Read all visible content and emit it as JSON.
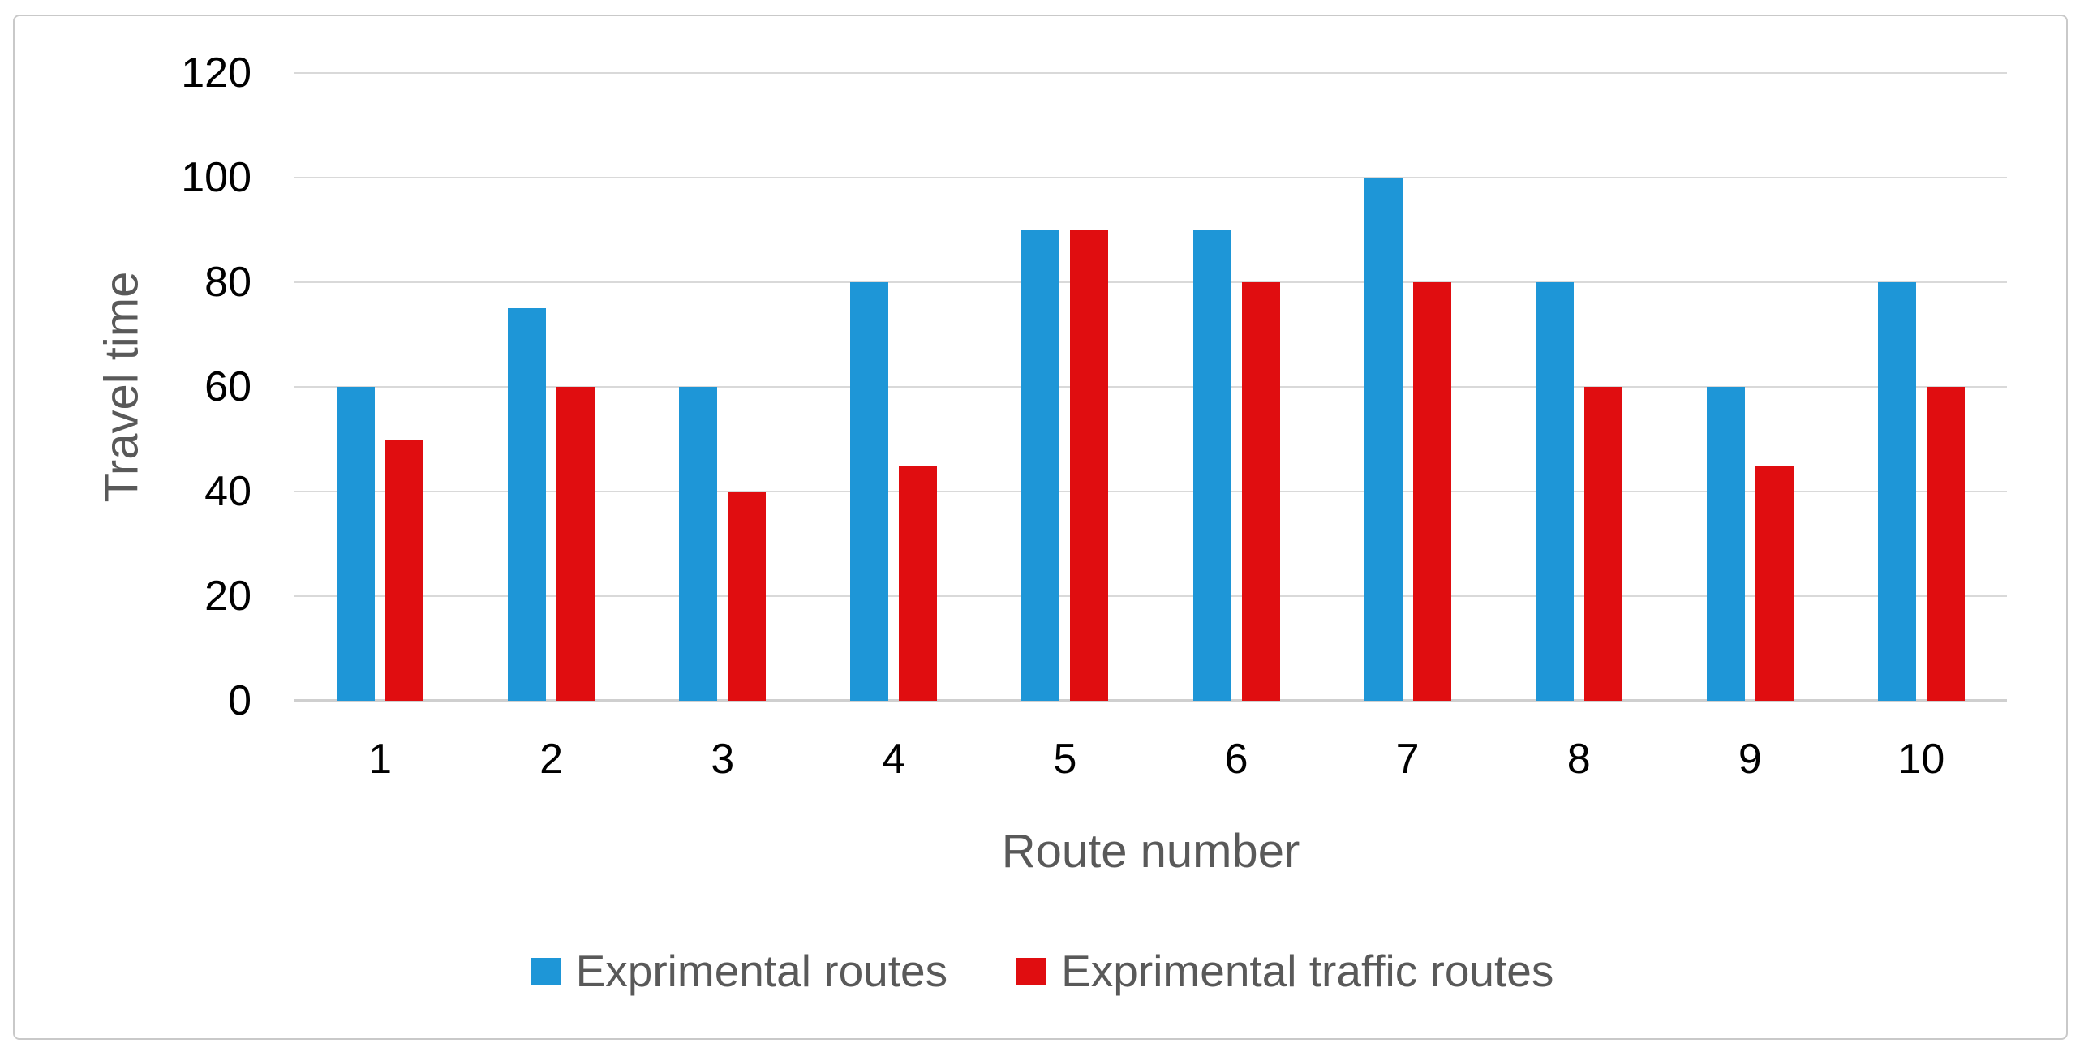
{
  "chart_data": {
    "type": "bar",
    "title": "",
    "categories": [
      "1",
      "2",
      "3",
      "4",
      "5",
      "6",
      "7",
      "8",
      "9",
      "10"
    ],
    "series": [
      {
        "name": "Exprimental routes",
        "color": "#1E96D7",
        "values": [
          60,
          75,
          60,
          80,
          90,
          90,
          100,
          80,
          60,
          80
        ]
      },
      {
        "name": "Exprimental traffic routes",
        "color": "#E00D10",
        "values": [
          50,
          60,
          40,
          45,
          90,
          80,
          80,
          60,
          45,
          60
        ]
      }
    ],
    "xlabel": "Route number",
    "ylabel": "Travel time",
    "ylim": [
      0,
      120
    ],
    "yticks": [
      0,
      20,
      40,
      60,
      80,
      100,
      120
    ],
    "grid": true,
    "legend_position": "bottom"
  },
  "theme": {
    "gridline_color": "#D9D9D9",
    "axis_line_color": "#CFCFCF",
    "text_color": "#595959",
    "frame_border_color": "#C9C9C9",
    "background_color": "#FFFFFF"
  }
}
